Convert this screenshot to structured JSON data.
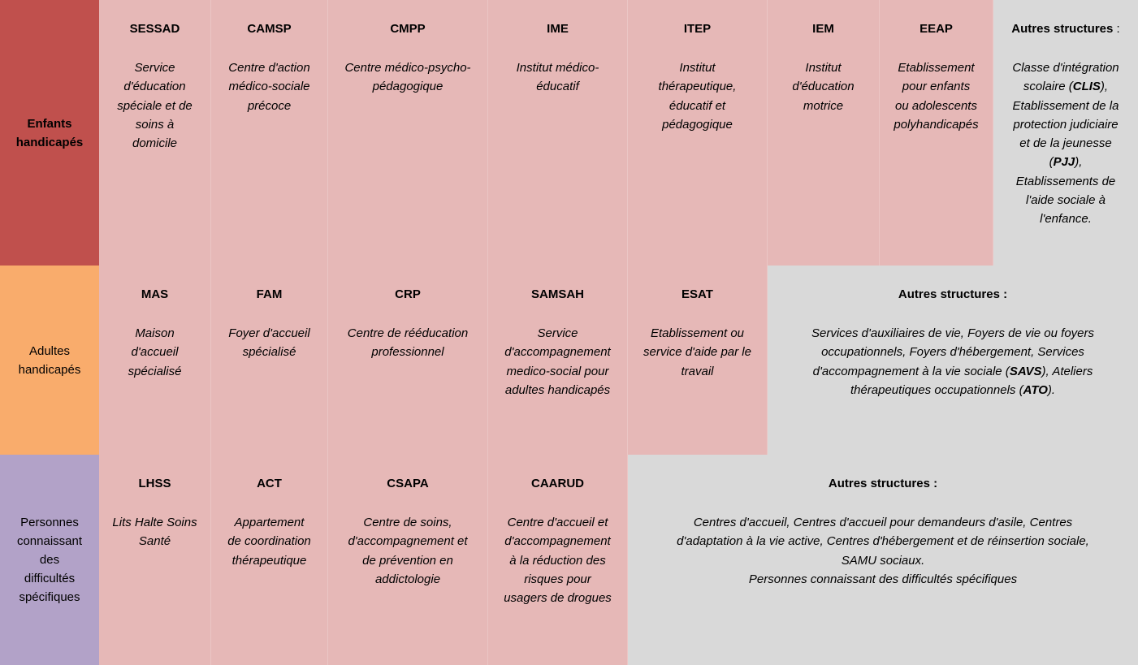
{
  "colors": {
    "children": "#c0504d",
    "adults": "#f9ac6c",
    "specific": "#b2a2c8",
    "cell": "#e6b8b7",
    "other": "#d9d9d9"
  },
  "rows": [
    {
      "label": "Enfants\nhandicapés",
      "cells": [
        {
          "title": "SESSAD",
          "desc": "Service\nd'éducation\nspéciale et de\nsoins à\ndomicile"
        },
        {
          "title": "CAMSP",
          "desc": "Centre d'action\nmédico-sociale\nprécoce"
        },
        {
          "title": "CMPP",
          "desc": "Centre médico-psycho-\npédagogique"
        },
        {
          "title": "IME",
          "desc": "Institut médico-\néducatif"
        },
        {
          "title": "ITEP",
          "desc": "Institut\nthérapeutique,\néducatif et\npédagogique"
        },
        {
          "title": "IEM",
          "desc": "Institut\nd'éducation\nmotrice"
        },
        {
          "title": "EEAP",
          "desc": "Etablissement\npour enfants\nou adolescents\npolyhandicapés"
        }
      ],
      "other": {
        "title": "Autres structures",
        "title_suffix": " :",
        "desc": [
          {
            "text": "Classe d'intégration\nscolaire ("
          },
          {
            "text": "CLIS",
            "bold": true
          },
          {
            "text": "),\nEtablissement de la\nprotection judiciaire\net de la jeunesse\n("
          },
          {
            "text": "PJJ",
            "bold": true
          },
          {
            "text": "),\nEtablissements de\nl'aide sociale à\nl'enfance."
          }
        ]
      }
    },
    {
      "label": "Adultes\nhandicapés",
      "cells": [
        {
          "title": "MAS",
          "desc": "Maison\nd'accueil\nspécialisé"
        },
        {
          "title": "FAM",
          "desc": "Foyer d'accueil\nspécialisé"
        },
        {
          "title": "CRP",
          "desc": "Centre de rééducation\nprofessionnel"
        },
        {
          "title": "SAMSAH",
          "desc": "Service\nd'accompagnement\nmedico-social pour\nadultes handicapés"
        },
        {
          "title": "ESAT",
          "desc": "Etablissement ou\nservice d'aide par le\ntravail"
        }
      ],
      "other": {
        "title": "Autres structures :",
        "desc": [
          {
            "text": "Services d'auxiliaires de vie, Foyers de vie ou foyers\noccupationnels, Foyers d'hébergement, Services\nd'accompagnement à la vie sociale ("
          },
          {
            "text": "SAVS",
            "bold": true
          },
          {
            "text": "), Ateliers\nthérapeutiques occupationnels ("
          },
          {
            "text": "ATO",
            "bold": true
          },
          {
            "text": ")."
          }
        ]
      }
    },
    {
      "label": "Personnes\nconnaissant\ndes\ndifficultés\nspécifiques",
      "cells": [
        {
          "title": "LHSS",
          "desc": "Lits Halte Soins\nSanté"
        },
        {
          "title": "ACT",
          "desc": "Appartement\nde coordination\nthérapeutique"
        },
        {
          "title": "CSAPA",
          "desc": "Centre de soins,\nd'accompagnement et\nde prévention en\naddictologie"
        },
        {
          "title": "CAARUD",
          "desc": "Centre d'accueil et\nd'accompagnement\nà la réduction des\nrisques pour\nusagers de drogues"
        }
      ],
      "other": {
        "title": "Autres structures :",
        "desc": [
          {
            "text": "Centres d'accueil, Centres d'accueil pour demandeurs d'asile, Centres\nd'adaptation à la vie active, Centres d'hébergement et de réinsertion sociale,\nSAMU sociaux.\nPersonnes connaissant des difficultés spécifiques"
          }
        ]
      }
    }
  ]
}
